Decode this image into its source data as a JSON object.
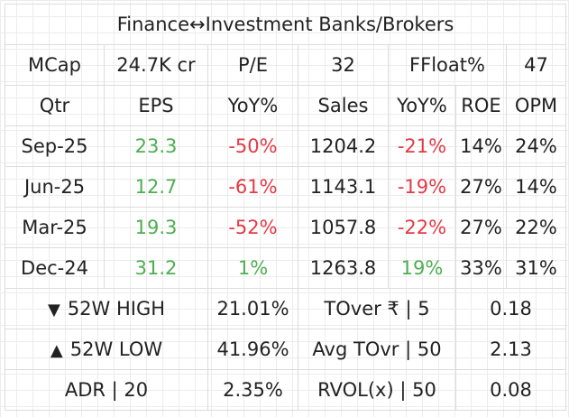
{
  "title": "Finance↔Investment Banks/Brokers",
  "info_row": {
    "mcap_label": "MCap",
    "mcap_value": "24.7K cr",
    "pe_label": "P/E",
    "pe_value": "32",
    "ffloat_label": "FFloat%",
    "ffloat_value": "47"
  },
  "headers": {
    "qtr": "Qtr",
    "eps": "EPS",
    "eps_yoy": "YoY%",
    "sales": "Sales",
    "sales_yoy": "YoY%",
    "roe": "ROE",
    "opm": "OPM"
  },
  "quarters": [
    {
      "qtr": "Sep-25",
      "eps": "23.3",
      "eps_yoy": "-50%",
      "sales": "1204.2",
      "sales_yoy": "-21%",
      "roe": "14%",
      "opm": "24%"
    },
    {
      "qtr": "Jun-25",
      "eps": "12.7",
      "eps_yoy": "-61%",
      "sales": "1143.1",
      "sales_yoy": "-19%",
      "roe": "27%",
      "opm": "14%"
    },
    {
      "qtr": "Mar-25",
      "eps": "19.3",
      "eps_yoy": "-52%",
      "sales": "1057.8",
      "sales_yoy": "-22%",
      "roe": "27%",
      "opm": "22%"
    },
    {
      "qtr": "Dec-24",
      "eps": "31.2",
      "eps_yoy": "1%",
      "sales": "1263.8",
      "sales_yoy": "19%",
      "roe": "33%",
      "opm": "31%"
    }
  ],
  "stats": [
    {
      "icon": "▼",
      "label": "52W HIGH",
      "value": "21.01%",
      "label2": "TOver ₹ | 5",
      "value2": "0.18"
    },
    {
      "icon": "▲",
      "label": "52W LOW",
      "value": "41.96%",
      "label2": "Avg TOvr | 50",
      "value2": "2.13"
    },
    {
      "icon": "",
      "label": "ADR | 20",
      "value": "2.35%",
      "label2": "RVOL(x) | 50",
      "value2": "0.08"
    }
  ],
  "colors": {
    "positive": "#4caf50",
    "negative": "#e53945",
    "text": "#222222",
    "grid": "#ececec"
  }
}
